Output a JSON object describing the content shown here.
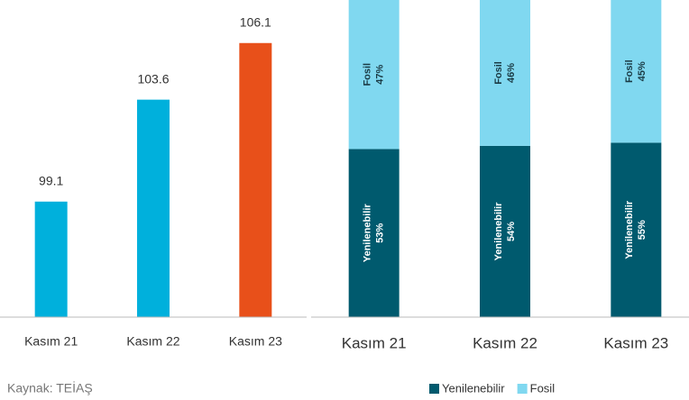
{
  "chart_data": [
    {
      "type": "bar",
      "categories": [
        "Kasım 21",
        "Kasım 22",
        "Kasım 23"
      ],
      "values": [
        99.1,
        103.6,
        106.1
      ],
      "colors": [
        "#00b0dc",
        "#00b0dc",
        "#e8501a"
      ],
      "ylim": [
        94,
        108
      ]
    },
    {
      "type": "stacked_bar",
      "categories": [
        "Kasım 21",
        "Kasım 22",
        "Kasım 23"
      ],
      "series": [
        {
          "name": "Yenilenebilir",
          "color": "#005a6e",
          "values": [
            53,
            54,
            55
          ],
          "value_labels": [
            "53%",
            "54%",
            "55%"
          ]
        },
        {
          "name": "Fosil",
          "color": "#80d8f0",
          "values": [
            47,
            46,
            45
          ],
          "value_labels": [
            "47%",
            "46%",
            "45%"
          ]
        }
      ],
      "ylim": [
        0,
        100
      ],
      "legend": "bottom"
    }
  ],
  "source": "Kaynak: TEİAŞ"
}
